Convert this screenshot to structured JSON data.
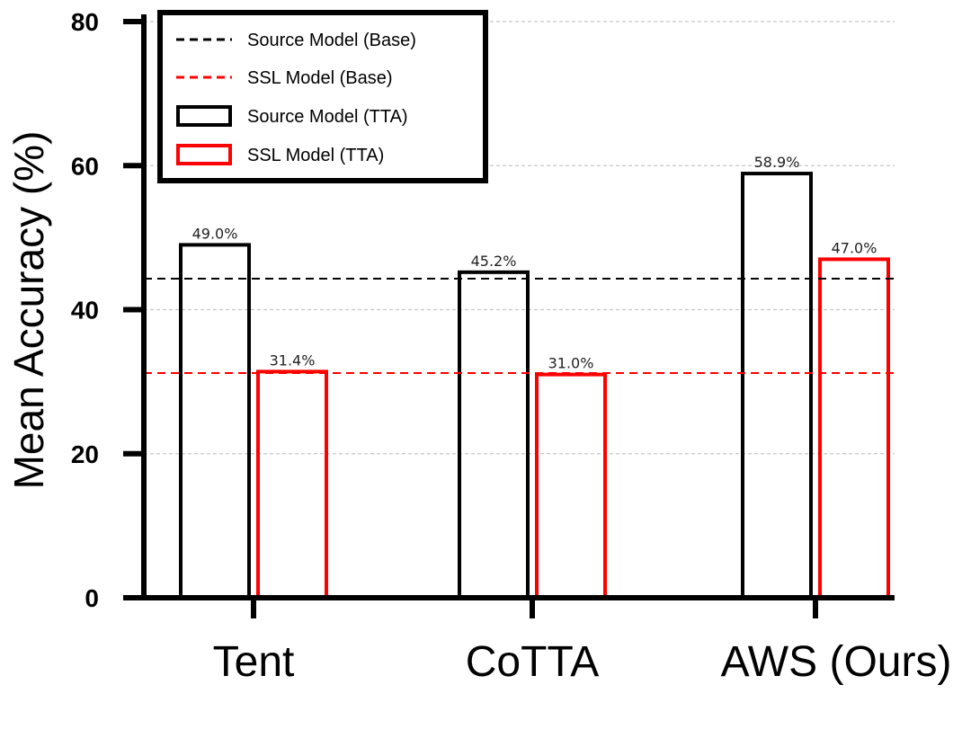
{
  "chart_data": {
    "type": "bar",
    "ylabel": "Mean Accuracy (%)",
    "xlabel": "",
    "ylim": [
      0,
      80
    ],
    "yticks": [
      0,
      20,
      40,
      60,
      80
    ],
    "yticks_labels": [
      "0",
      "20",
      "40",
      "60",
      "80"
    ],
    "categories": [
      "Tent",
      "CoTTA",
      "AWS (Ours)"
    ],
    "series": [
      {
        "name": "Source Model (TTA)",
        "color": "#000000",
        "values": [
          49.0,
          45.2,
          58.9
        ],
        "labels": [
          "49.0%",
          "45.2%",
          "58.9%"
        ]
      },
      {
        "name": "SSL Model (TTA)",
        "color": "#ff0000",
        "values": [
          31.4,
          31.0,
          47.0
        ],
        "labels": [
          "31.4%",
          "31.0%",
          "47.0%"
        ]
      }
    ],
    "reference_lines": [
      {
        "name": "Source Model (Base)",
        "value": 44.3,
        "color": "#000000",
        "style": "dashed"
      },
      {
        "name": "SSL Model (Base)",
        "value": 31.2,
        "color": "#ff0000",
        "style": "dashed"
      }
    ],
    "legend": {
      "placement": "top-left",
      "entries": [
        "Source Model (Base)",
        "SSL Model (Base)",
        "Source Model (TTA)",
        "SSL Model (TTA)"
      ]
    },
    "grid": "horizontal-dashed"
  }
}
